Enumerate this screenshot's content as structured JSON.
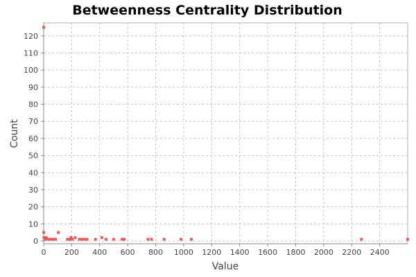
{
  "chart_data": {
    "type": "scatter",
    "title": "Betweenness Centrality Distribution",
    "xlabel": "Value",
    "ylabel": "Count",
    "xlim": [
      0,
      2600
    ],
    "ylim": [
      0,
      126
    ],
    "x_ticks": [
      0,
      200,
      400,
      600,
      800,
      1000,
      1200,
      1400,
      1600,
      1800,
      2000,
      2200,
      2400
    ],
    "y_ticks": [
      0,
      10,
      20,
      30,
      40,
      50,
      60,
      70,
      80,
      90,
      100,
      110,
      120
    ],
    "grid": true,
    "marker_color": "#e85a5a",
    "series": [
      {
        "points": [
          [
            0,
            125
          ],
          [
            0,
            5
          ],
          [
            2,
            2
          ],
          [
            10,
            1
          ],
          [
            18,
            2
          ],
          [
            28,
            1
          ],
          [
            35,
            1
          ],
          [
            45,
            1
          ],
          [
            55,
            1
          ],
          [
            70,
            1
          ],
          [
            85,
            1
          ],
          [
            105,
            5
          ],
          [
            170,
            1
          ],
          [
            185,
            1
          ],
          [
            195,
            2
          ],
          [
            205,
            1
          ],
          [
            225,
            2
          ],
          [
            255,
            1
          ],
          [
            270,
            1
          ],
          [
            290,
            1
          ],
          [
            310,
            1
          ],
          [
            370,
            1
          ],
          [
            415,
            2
          ],
          [
            445,
            1
          ],
          [
            500,
            1
          ],
          [
            560,
            1
          ],
          [
            575,
            1
          ],
          [
            745,
            1
          ],
          [
            770,
            1
          ],
          [
            860,
            1
          ],
          [
            980,
            1
          ],
          [
            1055,
            1
          ],
          [
            2270,
            1
          ],
          [
            2600,
            1
          ]
        ]
      }
    ]
  }
}
